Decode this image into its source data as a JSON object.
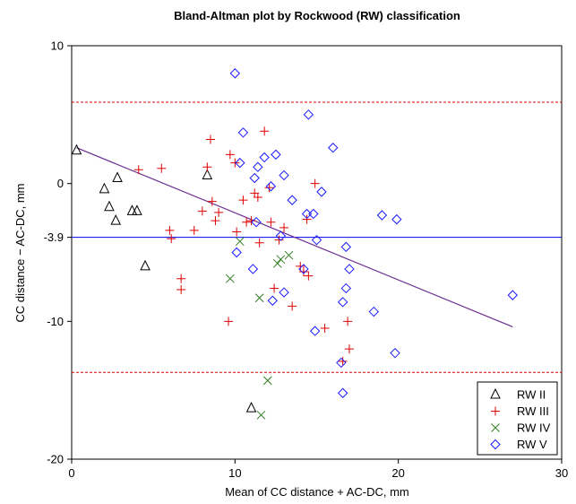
{
  "chart_data": {
    "type": "scatter",
    "title": "Bland-Altman plot by Rockwood (RW) classification",
    "xlabel": "Mean of CC distance + AC-DC, mm",
    "ylabel": "CC distance  −  AC-DC, mm",
    "xlim": [
      0,
      30
    ],
    "ylim": [
      -20,
      10
    ],
    "x_ticks": [
      0,
      10,
      20,
      30
    ],
    "y_ticks": [
      {
        "value": 10,
        "label": "10"
      },
      {
        "value": 0,
        "label": "0"
      },
      {
        "value": -3.9,
        "label": "-3.9"
      },
      {
        "value": -10,
        "label": "-10"
      },
      {
        "value": -20,
        "label": "-20"
      }
    ],
    "reference_lines": {
      "mean": -3.9,
      "upper_limit": 5.9,
      "lower_limit": -13.7,
      "mean_color": "#0000ee",
      "limit_color": "#dd0000"
    },
    "regression_line": {
      "from": [
        0.3,
        2.6
      ],
      "to": [
        27.0,
        -10.4
      ],
      "color": "#6a2c91"
    },
    "legend_position": "bottom-right",
    "series": [
      {
        "name": "RW II",
        "marker": "triangle",
        "color": "#000000",
        "points": [
          [
            0.3,
            2.4
          ],
          [
            2.0,
            -0.4
          ],
          [
            2.3,
            -1.7
          ],
          [
            2.7,
            -2.7
          ],
          [
            2.8,
            0.4
          ],
          [
            3.7,
            -2.0
          ],
          [
            4.0,
            -2.0
          ],
          [
            4.5,
            -6.0
          ],
          [
            8.3,
            0.6
          ],
          [
            11.0,
            -16.3
          ]
        ]
      },
      {
        "name": "RW III",
        "marker": "plus",
        "color": "#dd0000",
        "points": [
          [
            4.1,
            1.0
          ],
          [
            5.5,
            1.1
          ],
          [
            6.0,
            -3.4
          ],
          [
            6.1,
            -4.0
          ],
          [
            6.7,
            -6.9
          ],
          [
            6.7,
            -7.7
          ],
          [
            7.5,
            -3.4
          ],
          [
            8.0,
            -2.0
          ],
          [
            8.3,
            1.2
          ],
          [
            8.5,
            3.2
          ],
          [
            8.6,
            -1.3
          ],
          [
            8.8,
            -2.7
          ],
          [
            9.0,
            -2.1
          ],
          [
            9.6,
            -10.0
          ],
          [
            9.7,
            2.1
          ],
          [
            10.0,
            1.5
          ],
          [
            10.1,
            -3.5
          ],
          [
            10.5,
            -1.2
          ],
          [
            10.7,
            -2.8
          ],
          [
            11.0,
            -2.7
          ],
          [
            11.2,
            -0.7
          ],
          [
            11.4,
            -1.0
          ],
          [
            11.5,
            -4.3
          ],
          [
            11.8,
            3.8
          ],
          [
            12.1,
            -0.3
          ],
          [
            12.2,
            -2.8
          ],
          [
            12.4,
            -7.6
          ],
          [
            12.7,
            -4.1
          ],
          [
            13.0,
            -3.2
          ],
          [
            13.5,
            -8.9
          ],
          [
            14.0,
            -6.0
          ],
          [
            14.2,
            -6.4
          ],
          [
            14.4,
            -2.6
          ],
          [
            14.5,
            -6.7
          ],
          [
            14.9,
            0.0
          ],
          [
            15.5,
            -10.5
          ],
          [
            16.6,
            -12.9
          ],
          [
            16.9,
            -10.0
          ],
          [
            17.0,
            -12.0
          ]
        ]
      },
      {
        "name": "RW IV",
        "marker": "x",
        "color": "#2e7d1e",
        "points": [
          [
            9.7,
            -6.9
          ],
          [
            10.3,
            -4.2
          ],
          [
            11.5,
            -8.3
          ],
          [
            11.6,
            -16.8
          ],
          [
            12.0,
            -14.3
          ],
          [
            12.6,
            -5.8
          ],
          [
            12.8,
            -5.5
          ],
          [
            13.3,
            -5.2
          ]
        ]
      },
      {
        "name": "RW V",
        "marker": "diamond",
        "color": "#1a1aff",
        "points": [
          [
            10.0,
            8.0
          ],
          [
            10.1,
            -5.0
          ],
          [
            10.3,
            1.5
          ],
          [
            10.5,
            3.7
          ],
          [
            11.1,
            -6.2
          ],
          [
            11.2,
            0.4
          ],
          [
            11.3,
            -2.8
          ],
          [
            11.4,
            1.2
          ],
          [
            11.8,
            1.9
          ],
          [
            12.2,
            -0.2
          ],
          [
            12.3,
            -8.5
          ],
          [
            12.5,
            2.1
          ],
          [
            12.8,
            -3.8
          ],
          [
            13.0,
            0.6
          ],
          [
            13.0,
            -7.9
          ],
          [
            13.5,
            -1.2
          ],
          [
            14.2,
            -6.2
          ],
          [
            14.4,
            -2.2
          ],
          [
            14.5,
            5.0
          ],
          [
            14.8,
            -2.2
          ],
          [
            14.9,
            -10.7
          ],
          [
            15.0,
            -4.1
          ],
          [
            15.3,
            -0.6
          ],
          [
            16.0,
            2.6
          ],
          [
            16.5,
            -13.0
          ],
          [
            16.6,
            -15.2
          ],
          [
            16.6,
            -8.6
          ],
          [
            16.8,
            -4.6
          ],
          [
            16.8,
            -7.6
          ],
          [
            17.0,
            -6.2
          ],
          [
            18.5,
            -9.3
          ],
          [
            19.0,
            -2.3
          ],
          [
            19.8,
            -12.3
          ],
          [
            19.9,
            -2.6
          ],
          [
            27.0,
            -8.1
          ]
        ]
      }
    ]
  }
}
